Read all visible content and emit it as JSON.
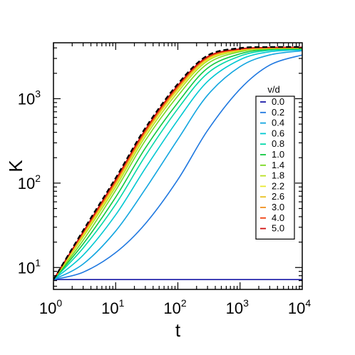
{
  "chart_data": {
    "type": "line",
    "title": "",
    "xlabel": "t",
    "ylabel": "K",
    "xscale": "log",
    "yscale": "log",
    "xlim": [
      1,
      10000
    ],
    "ylim": [
      5.5,
      4600
    ],
    "x_ticks": [
      {
        "value": 1,
        "base": "10",
        "exp": "0"
      },
      {
        "value": 10,
        "base": "10",
        "exp": "1"
      },
      {
        "value": 100,
        "base": "10",
        "exp": "2"
      },
      {
        "value": 1000,
        "base": "10",
        "exp": "3"
      },
      {
        "value": 10000,
        "base": "10",
        "exp": "4"
      }
    ],
    "y_ticks": [
      {
        "value": 10,
        "base": "10",
        "exp": "1"
      },
      {
        "value": 100,
        "base": "10",
        "exp": "2"
      },
      {
        "value": 1000,
        "base": "10",
        "exp": "3"
      }
    ],
    "legend": {
      "title": "v/d",
      "position": "right"
    },
    "series": [
      {
        "name": "0.0",
        "color": "#1a1aa8",
        "x": [
          1,
          10,
          100,
          1000,
          10000
        ],
        "y": [
          7.2,
          7.2,
          7.2,
          7.2,
          7.2
        ]
      },
      {
        "name": "0.2",
        "color": "#1f78e0",
        "x": [
          1,
          3,
          10,
          30,
          100,
          300,
          1000,
          3000,
          10000
        ],
        "y": [
          7.2,
          8.8,
          15,
          33,
          110,
          420,
          1300,
          2500,
          3300
        ]
      },
      {
        "name": "0.4",
        "color": "#12a6e0",
        "x": [
          1,
          3,
          10,
          30,
          100,
          300,
          1000,
          3000,
          10000
        ],
        "y": [
          7.2,
          11,
          27,
          85,
          330,
          1100,
          2400,
          3300,
          3700
        ]
      },
      {
        "name": "0.6",
        "color": "#00c8d2",
        "x": [
          1,
          3,
          10,
          30,
          100,
          300,
          1000,
          3000,
          10000
        ],
        "y": [
          7.2,
          14,
          42,
          150,
          560,
          1600,
          2900,
          3600,
          3800
        ]
      },
      {
        "name": "0.8",
        "color": "#00d8a8",
        "x": [
          1,
          3,
          10,
          30,
          100,
          300,
          1000,
          3000,
          10000
        ],
        "y": [
          7.2,
          17,
          56,
          210,
          760,
          2000,
          3200,
          3750,
          3850
        ]
      },
      {
        "name": "1.0",
        "color": "#10c840",
        "x": [
          1,
          3,
          10,
          30,
          100,
          300,
          1000,
          3000,
          10000
        ],
        "y": [
          7.2,
          19,
          68,
          260,
          900,
          2300,
          3400,
          3850,
          3900
        ]
      },
      {
        "name": "1.4",
        "color": "#78d820",
        "x": [
          1,
          3,
          10,
          30,
          100,
          300,
          1000,
          3000,
          10000
        ],
        "y": [
          7.2,
          21,
          82,
          320,
          1080,
          2600,
          3600,
          3900,
          3950
        ]
      },
      {
        "name": "1.8",
        "color": "#b8e020",
        "x": [
          1,
          3,
          10,
          30,
          100,
          300,
          1000,
          3000,
          10000
        ],
        "y": [
          7.2,
          23,
          90,
          355,
          1200,
          2800,
          3700,
          3950,
          4000
        ]
      },
      {
        "name": "2.2",
        "color": "#e8e830",
        "x": [
          1,
          3,
          10,
          30,
          100,
          300,
          1000,
          3000,
          10000
        ],
        "y": [
          7.2,
          24,
          96,
          380,
          1280,
          2900,
          3750,
          3980,
          4020
        ]
      },
      {
        "name": "2.6",
        "color": "#e8c020",
        "x": [
          1,
          3,
          10,
          30,
          100,
          300,
          1000,
          3000,
          10000
        ],
        "y": [
          7.2,
          25,
          100,
          395,
          1330,
          3000,
          3800,
          4000,
          4040
        ]
      },
      {
        "name": "3.0",
        "color": "#f09020",
        "x": [
          1,
          3,
          10,
          30,
          100,
          300,
          1000,
          3000,
          10000
        ],
        "y": [
          7.2,
          25.5,
          103,
          405,
          1370,
          3050,
          3830,
          4020,
          4050
        ]
      },
      {
        "name": "4.0",
        "color": "#f04010",
        "x": [
          1,
          3,
          10,
          30,
          100,
          300,
          1000,
          3000,
          10000
        ],
        "y": [
          7.2,
          26,
          107,
          420,
          1410,
          3100,
          3870,
          4040,
          4060
        ]
      },
      {
        "name": "5.0",
        "color": "#d01010",
        "x": [
          1,
          3,
          10,
          30,
          100,
          300,
          1000,
          3000,
          10000
        ],
        "y": [
          7.2,
          26.5,
          110,
          430,
          1440,
          3150,
          3900,
          4050,
          4070
        ]
      }
    ],
    "reference_line": {
      "color": "#000000",
      "style": "dashed",
      "x": [
        1,
        3,
        10,
        30,
        100,
        300,
        1000,
        3000,
        10000
      ],
      "y": [
        7.2,
        27.5,
        115,
        450,
        1500,
        3250,
        3980,
        4100,
        4100
      ]
    }
  }
}
